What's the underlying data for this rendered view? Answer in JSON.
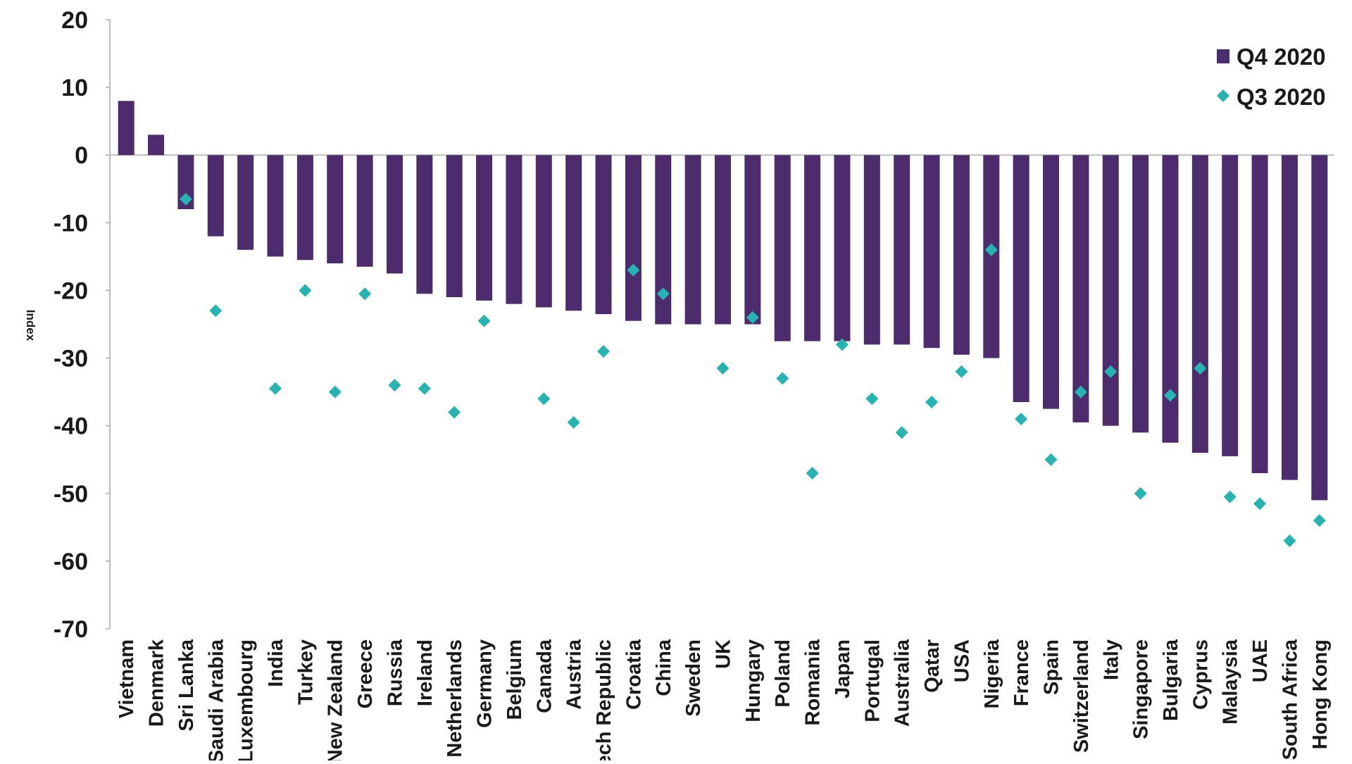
{
  "colors": {
    "bar": "#4c2c6d",
    "marker": "#25b4b1",
    "axis": "#bdbdbd",
    "text": "#1a1a1a"
  },
  "chart_data": {
    "type": "bar",
    "ylabel": "Index",
    "ylim": [
      -70,
      20
    ],
    "yticks": [
      20,
      10,
      0,
      -10,
      -20,
      -30,
      -40,
      -50,
      -60,
      -70
    ],
    "legend_position": "top-right",
    "grid": false,
    "categories": [
      "Vietnam",
      "Denmark",
      "Sri Lanka",
      "Saudi Arabia",
      "Luxembourg",
      "India",
      "Turkey",
      "New Zealand",
      "Greece",
      "Russia",
      "Ireland",
      "Netherlands",
      "Germany",
      "Belgium",
      "Canada",
      "Austria",
      "Czech Republic",
      "Croatia",
      "China",
      "Sweden",
      "UK",
      "Hungary",
      "Poland",
      "Romania",
      "Japan",
      "Portugal",
      "Australia",
      "Qatar",
      "USA",
      "Nigeria",
      "France",
      "Spain",
      "Switzerland",
      "Italy",
      "Singapore",
      "Bulgaria",
      "Cyprus",
      "Malaysia",
      "UAE",
      "South Africa",
      "Hong Kong"
    ],
    "series": [
      {
        "name": "Q4 2020",
        "kind": "bar",
        "values": [
          8,
          3,
          -8,
          -12,
          -14,
          -15,
          -15.5,
          -16,
          -16.5,
          -17.5,
          -20.5,
          -21,
          -21.5,
          -22,
          -22.5,
          -23,
          -23.5,
          -24.5,
          -25,
          -25,
          -25,
          -25,
          -27.5,
          -27.5,
          -27.5,
          -28,
          -28,
          -28.5,
          -29.5,
          -30,
          -36.5,
          -37.5,
          -39.5,
          -40,
          -41,
          -42.5,
          -44,
          -44.5,
          -47,
          -48,
          -51
        ]
      },
      {
        "name": "Q3 2020",
        "kind": "marker",
        "values": [
          null,
          null,
          -6.5,
          -23,
          null,
          -34.5,
          -20,
          -35,
          -20.5,
          -34,
          -34.5,
          -38,
          -24.5,
          null,
          -36,
          -39.5,
          -29,
          -17,
          -20.5,
          null,
          -31.5,
          -24,
          -33,
          -47,
          -28,
          -36,
          -41,
          -36.5,
          -32,
          -14,
          -39,
          -45,
          -35,
          -32,
          -50,
          -35.5,
          -31.5,
          -50.5,
          -51.5,
          -57,
          -54
        ]
      }
    ]
  }
}
